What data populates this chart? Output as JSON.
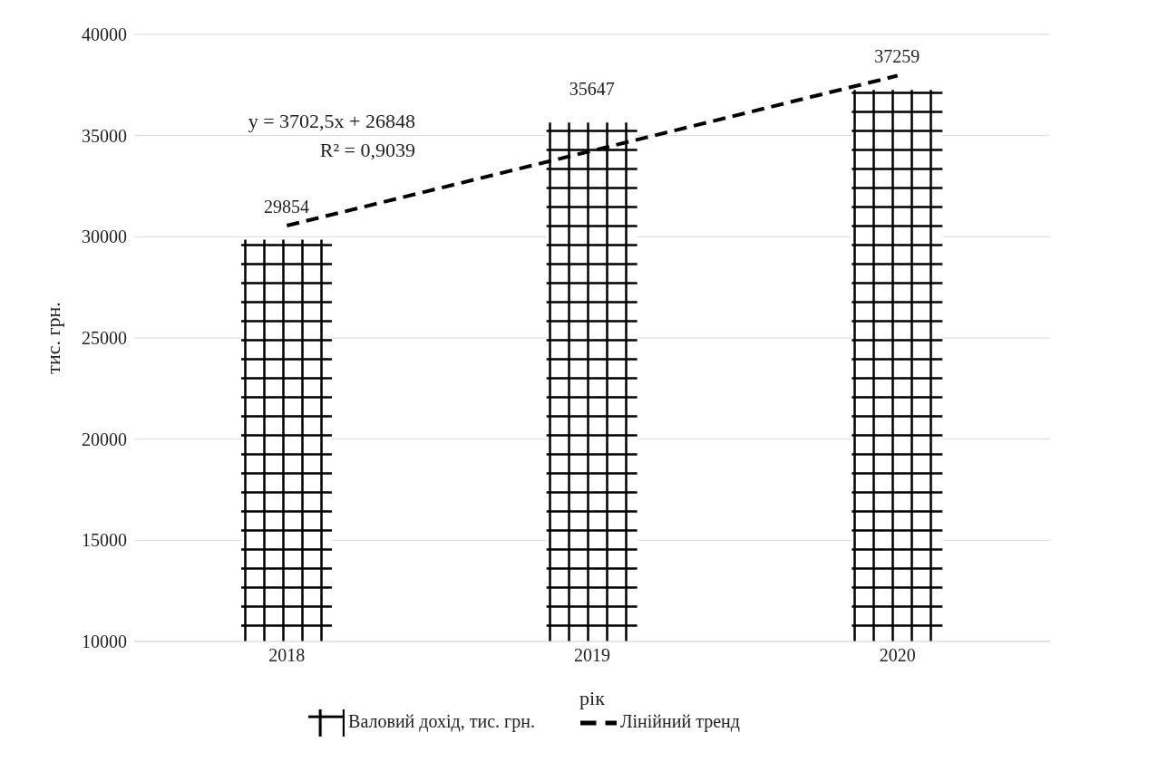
{
  "chart_data": {
    "type": "bar",
    "xlabel": "рік",
    "ylabel": "тис. грн.",
    "categories": [
      "2018",
      "2019",
      "2020"
    ],
    "series": [
      {
        "name": "Валовий дохід, тис. грн.",
        "color": "#000000",
        "values": [
          29854,
          35647,
          37259
        ],
        "value_labels": [
          "29854",
          "35647",
          "37259"
        ]
      },
      {
        "name": "Лінійний тренд",
        "type": "line",
        "color": "#000000",
        "line_style": "dashed",
        "marker": "none",
        "values": [
          30550,
          34250,
          37960
        ]
      }
    ],
    "ylim": [
      10000,
      40000
    ],
    "yticks": [
      10000,
      15000,
      20000,
      25000,
      30000,
      35000,
      40000
    ],
    "grid": "y",
    "legend": "bottom",
    "annotations": [
      "y = 3702,5x + 26848",
      "R² = 0,9039"
    ]
  }
}
